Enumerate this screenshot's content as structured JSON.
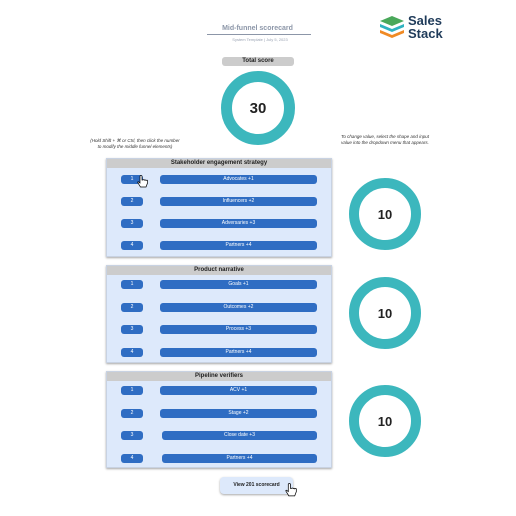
{
  "header": {
    "title": "Mid-funnel scorecard",
    "subtitle": "System Template  |  July 5, 2023",
    "logo_line1": "Sales",
    "logo_line2": "Stack"
  },
  "total": {
    "label": "Total score",
    "value": "30"
  },
  "notes": {
    "left": "(Hold Shift + ⌘ or Ctrl, then click the number to modify the middle funnel elements)",
    "right": "To change value, select the shape and input value into the dropdown menu that appears."
  },
  "sections": [
    {
      "title": "Stakeholder engagement strategy",
      "score": "10",
      "rows": [
        {
          "num": "1",
          "label": "Advocates +1"
        },
        {
          "num": "2",
          "label": "Influencers +2"
        },
        {
          "num": "3",
          "label": "Adversaries +3"
        },
        {
          "num": "4",
          "label": "Partners +4"
        }
      ]
    },
    {
      "title": "Product narrative",
      "score": "10",
      "rows": [
        {
          "num": "1",
          "label": "Goals +1"
        },
        {
          "num": "2",
          "label": "Outcomes +2"
        },
        {
          "num": "3",
          "label": "Process +3"
        },
        {
          "num": "4",
          "label": "Partners +4"
        }
      ]
    },
    {
      "title": "Pipeline verifiers",
      "score": "10",
      "rows": [
        {
          "num": "1",
          "label": "ACV +1"
        },
        {
          "num": "2",
          "label": "Stage +2"
        },
        {
          "num": "3",
          "label": "Close date +3"
        },
        {
          "num": "4",
          "label": "Partners +4"
        }
      ]
    }
  ],
  "cta": {
    "label": "View 201 scorecard"
  },
  "colors": {
    "accent": "#3cb7bd",
    "button": "#2f6dc3",
    "panel": "#dde9fb",
    "header": "#cccccc"
  }
}
